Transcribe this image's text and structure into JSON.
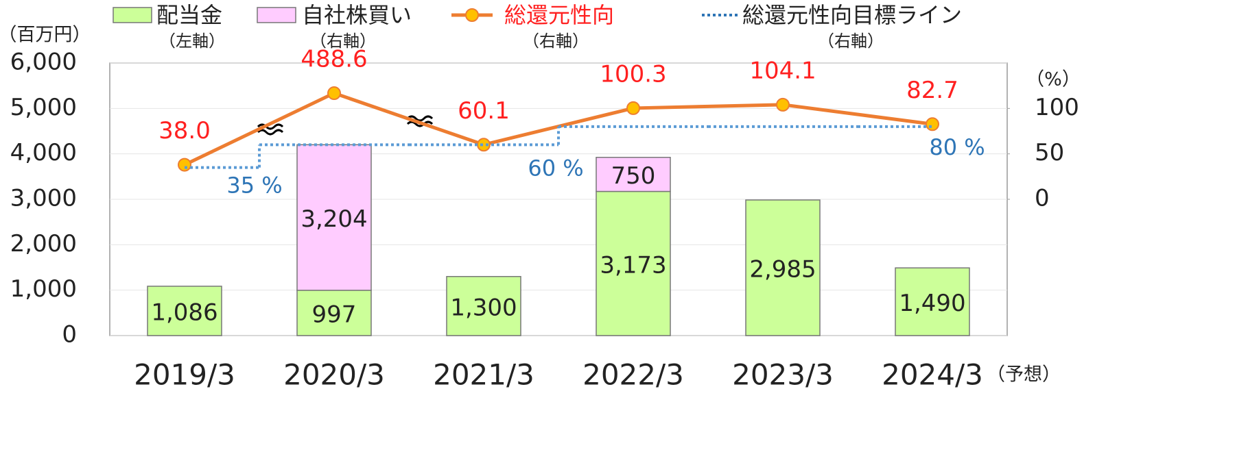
{
  "chart_data": {
    "type": "bar",
    "unit_label": "（百万円）",
    "y2_unit_label": "（%）",
    "categories": [
      "2019/3",
      "2020/3",
      "2021/3",
      "2022/3",
      "2023/3",
      "2024/3"
    ],
    "category_note": "（予想）",
    "ylim": [
      0,
      6000
    ],
    "yticks": [
      0,
      {
        "value": 1000,
        "label": "1,000"
      },
      {
        "value": 2000,
        "label": "2,000"
      },
      {
        "value": 3000,
        "label": "3,000"
      },
      {
        "value": 4000,
        "label": "4,000"
      },
      {
        "value": 5000,
        "label": "5,000"
      },
      {
        "value": 6000,
        "label": "6,000"
      }
    ],
    "y2lim": [
      -150,
      150
    ],
    "y2ticks": [
      0,
      50,
      100
    ],
    "grid": true,
    "series": [
      {
        "name": "配当金",
        "axis_label": "（左軸）",
        "type": "bar",
        "color": "#ccff99",
        "values": [
          1086,
          997,
          1300,
          3173,
          2985,
          1490
        ],
        "value_labels": [
          "1,086",
          "997",
          "1,300",
          "3,173",
          "2,985",
          "1,490"
        ]
      },
      {
        "name": "自社株買い",
        "axis_label": "（右軸）",
        "type": "bar",
        "color": "#ffccff",
        "values": [
          null,
          3204,
          null,
          750,
          null,
          null
        ],
        "value_labels": [
          null,
          "3,204",
          null,
          "750",
          null,
          null
        ]
      },
      {
        "name": "総還元性向",
        "axis_label": "（右軸）",
        "type": "line",
        "axis": "y2",
        "color": "#ed7d31",
        "marker_color": "#ffc000",
        "values": [
          38.0,
          488.6,
          60.1,
          100.3,
          104.1,
          82.7
        ],
        "value_labels": [
          "38.0",
          "488.6",
          "60.1",
          "100.3",
          "104.1",
          "82.7"
        ]
      },
      {
        "name": "総還元性向目標ライン",
        "axis_label": "（右軸）",
        "type": "step",
        "axis": "y2",
        "color": "#2e75b6",
        "values": [
          35,
          60,
          60,
          80,
          80,
          80
        ],
        "value_labels": [
          "35 %",
          null,
          "60 %",
          null,
          null,
          "80 %"
        ]
      }
    ]
  }
}
